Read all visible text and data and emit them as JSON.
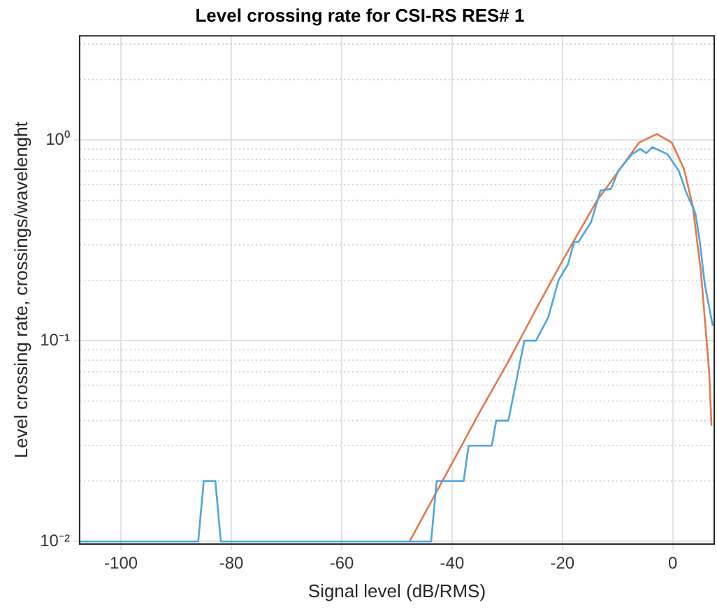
{
  "chart_data": {
    "type": "line",
    "title": "Level crossing rate for CSI-RS RES# 1",
    "xlabel": "Signal level (dB/RMS)",
    "ylabel": "Level crossing rate, crossings/wavelenght",
    "log": "y",
    "grid": true,
    "legend": false,
    "marker": "none",
    "line_style": "solid",
    "xlim": [
      -107.5,
      7.5
    ],
    "xticks": [
      -100,
      -80,
      -60,
      -40,
      -20,
      0
    ],
    "ylim": [
      0.0097,
      3.3
    ],
    "yticks": [
      {
        "value": 0.01,
        "label": "10⁻²"
      },
      {
        "value": 0.02,
        "label": null
      },
      {
        "value": 0.03,
        "label": null
      },
      {
        "value": 0.04,
        "label": null
      },
      {
        "value": 0.05,
        "label": null
      },
      {
        "value": 0.06,
        "label": null
      },
      {
        "value": 0.07,
        "label": null
      },
      {
        "value": 0.08,
        "label": null
      },
      {
        "value": 0.09,
        "label": null
      },
      {
        "value": 0.1,
        "label": "10⁻¹"
      },
      {
        "value": 0.2,
        "label": null
      },
      {
        "value": 0.3,
        "label": null
      },
      {
        "value": 0.4,
        "label": null
      },
      {
        "value": 0.5,
        "label": null
      },
      {
        "value": 0.6,
        "label": null
      },
      {
        "value": 0.7,
        "label": null
      },
      {
        "value": 0.8,
        "label": null
      },
      {
        "value": 0.9,
        "label": null
      },
      {
        "value": 1,
        "label": "10⁰"
      },
      {
        "value": 2,
        "label": null
      },
      {
        "value": 3,
        "label": null
      }
    ],
    "series": [
      {
        "color": "#4ea5df",
        "x": [
          -107.4,
          -86,
          -85,
          -82.9,
          -81.9,
          -43.8,
          -42.8,
          -37.9,
          -37,
          -32.8,
          -32,
          -29.8,
          -26.9,
          -24.8,
          -22.6,
          -20.7,
          -19,
          -17.9,
          -17.1,
          -14.8,
          -13.1,
          -11.2,
          -9.9,
          -7.4,
          -5.9,
          -4.8,
          -3.7,
          -1,
          1.1,
          2.4,
          4.1,
          4.9,
          5.8,
          7.2
        ],
        "values": [
          0.01,
          0.01,
          0.02,
          0.02,
          0.01,
          0.01,
          0.02,
          0.02,
          0.03,
          0.03,
          0.04,
          0.04,
          0.1,
          0.1,
          0.13,
          0.2,
          0.24,
          0.31,
          0.31,
          0.39,
          0.56,
          0.57,
          0.7,
          0.85,
          0.9,
          0.86,
          0.92,
          0.85,
          0.7,
          0.55,
          0.43,
          0.31,
          0.19,
          0.12
        ]
      },
      {
        "color": "#e6774a",
        "x": [
          -47.7,
          -40,
          -35,
          -30,
          -25,
          -20,
          -13.7,
          -9.5,
          -6.1,
          -2.9,
          -0.2,
          2,
          3.6,
          5.1,
          6.6,
          7
        ],
        "values": [
          0.01,
          0.0245,
          0.044,
          0.077,
          0.14,
          0.25,
          0.5,
          0.72,
          0.97,
          1.07,
          0.97,
          0.72,
          0.47,
          0.22,
          0.069,
          0.038
        ]
      }
    ]
  }
}
